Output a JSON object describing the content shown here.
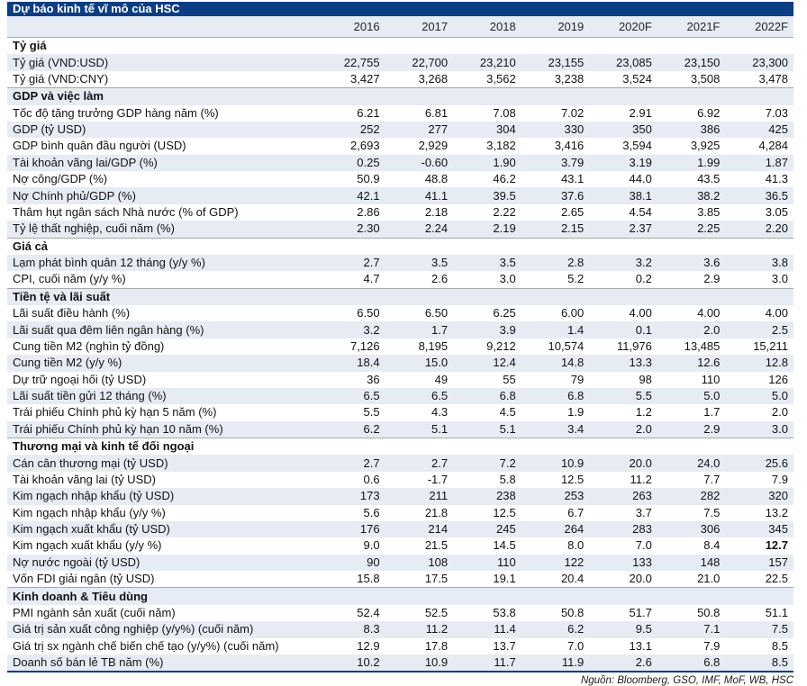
{
  "title": "Dự báo kinh tế vĩ mô của HSC",
  "columns": [
    "2016",
    "2017",
    "2018",
    "2019",
    "2020F",
    "2021F",
    "2022F"
  ],
  "source": "Nguồn: Bloomberg, GSO, IMF, MoF, WB, HSC",
  "colors": {
    "title_bar": "#0b3d84",
    "row_shade": "#e6ebf4"
  },
  "sections": [
    {
      "header": "Tỷ giá",
      "rows": [
        {
          "label": "Tỷ giá (VND:USD)",
          "values": [
            "22,755",
            "22,700",
            "23,210",
            "23,155",
            "23,085",
            "23,150",
            "23,300"
          ]
        },
        {
          "label": "Tỷ giá (VND:CNY)",
          "values": [
            "3,427",
            "3,268",
            "3,562",
            "3,238",
            "3,524",
            "3,508",
            "3,478"
          ]
        }
      ]
    },
    {
      "header": "GDP và việc làm",
      "rows": [
        {
          "label": "Tốc độ tăng trưởng GDP hàng năm (%)",
          "values": [
            "6.21",
            "6.81",
            "7.08",
            "7.02",
            "2.91",
            "6.92",
            "7.03"
          ]
        },
        {
          "label": "GDP (tỷ USD)",
          "values": [
            "252",
            "277",
            "304",
            "330",
            "350",
            "386",
            "425"
          ]
        },
        {
          "label": "GDP bình quân đầu người (USD)",
          "values": [
            "2,693",
            "2,929",
            "3,182",
            "3,416",
            "3,594",
            "3,925",
            "4,284"
          ]
        },
        {
          "label": "Tài khoản vãng lai/GDP (%)",
          "values": [
            "0.25",
            "-0.60",
            "1.90",
            "3.79",
            "3.19",
            "1.99",
            "1.87"
          ]
        },
        {
          "label": "Nợ công/GDP (%)",
          "values": [
            "50.9",
            "48.8",
            "46.2",
            "43.1",
            "44.0",
            "43.5",
            "41.3"
          ]
        },
        {
          "label": "Nợ Chính phủ/GDP (%)",
          "values": [
            "42.1",
            "41.1",
            "39.5",
            "37.6",
            "38.1",
            "38.2",
            "36.5"
          ]
        },
        {
          "label": "Thâm hụt ngân sách Nhà nước (% of GDP)",
          "values": [
            "2.86",
            "2.18",
            "2.22",
            "2.65",
            "4.54",
            "3.85",
            "3.05"
          ]
        },
        {
          "label": "Tỷ lệ thất nghiệp, cuối năm (%)",
          "values": [
            "2.30",
            "2.24",
            "2.19",
            "2.15",
            "2.37",
            "2.25",
            "2.20"
          ]
        }
      ]
    },
    {
      "header": "Giá cả",
      "rows": [
        {
          "label": "Lạm phát bình quân 12 tháng (y/y %)",
          "values": [
            "2.7",
            "3.5",
            "3.5",
            "2.8",
            "3.2",
            "3.6",
            "3.8"
          ]
        },
        {
          "label": "CPI, cuối năm (y/y %)",
          "values": [
            "4.7",
            "2.6",
            "3.0",
            "5.2",
            "0.2",
            "2.9",
            "3.0"
          ]
        }
      ]
    },
    {
      "header": "Tiền tệ và lãi suất",
      "rows": [
        {
          "label": "Lãi suất điều hành (%)",
          "values": [
            "6.50",
            "6.50",
            "6.25",
            "6.00",
            "4.00",
            "4.00",
            "4.00"
          ]
        },
        {
          "label": "Lãi suất qua đêm liên ngân hàng (%)",
          "values": [
            "3.2",
            "1.7",
            "3.9",
            "1.4",
            "0.1",
            "2.0",
            "2.5"
          ]
        },
        {
          "label": "Cung tiền M2 (nghìn tỷ đồng)",
          "values": [
            "7,126",
            "8,195",
            "9,212",
            "10,574",
            "11,976",
            "13,485",
            "15,211"
          ]
        },
        {
          "label": "Cung tiền M2 (y/y %)",
          "values": [
            "18.4",
            "15.0",
            "12.4",
            "14.8",
            "13.3",
            "12.6",
            "12.8"
          ]
        },
        {
          "label": "Dự trữ ngoại hối (tỷ USD)",
          "values": [
            "36",
            "49",
            "55",
            "79",
            "98",
            "110",
            "126"
          ]
        },
        {
          "label": "Lãi suất tiền gửi 12 tháng (%)",
          "values": [
            "6.5",
            "6.5",
            "6.8",
            "6.8",
            "5.5",
            "5.0",
            "5.0"
          ]
        },
        {
          "label": "Trái phiếu Chính phủ kỳ hạn 5 năm (%)",
          "values": [
            "5.5",
            "4.3",
            "4.5",
            "1.9",
            "1.2",
            "1.7",
            "2.0"
          ]
        },
        {
          "label": "Trái phiếu Chính phủ kỳ hạn 10 năm (%)",
          "values": [
            "6.2",
            "5.1",
            "5.1",
            "3.4",
            "2.0",
            "2.9",
            "3.0"
          ]
        }
      ]
    },
    {
      "header": "Thương mại và kinh tế đối ngoại",
      "rows": [
        {
          "label": "Cán cân thương mại (tỷ USD)",
          "values": [
            "2.7",
            "2.7",
            "7.2",
            "10.9",
            "20.0",
            "24.0",
            "25.6"
          ]
        },
        {
          "label": "Tài khoản vãng lai (tỷ USD)",
          "values": [
            "0.6",
            "-1.7",
            "5.8",
            "12.5",
            "11.2",
            "7.7",
            "7.9"
          ]
        },
        {
          "label": "Kim ngạch nhập khẩu (tỷ USD)",
          "values": [
            "173",
            "211",
            "238",
            "253",
            "263",
            "282",
            "320"
          ]
        },
        {
          "label": "Kim ngạch nhập khẩu (y/y %)",
          "values": [
            "5.6",
            "21.8",
            "12.5",
            "6.7",
            "3.7",
            "7.5",
            "13.2"
          ]
        },
        {
          "label": "Kim ngạch xuất khẩu (tỷ USD)",
          "values": [
            "176",
            "214",
            "245",
            "264",
            "283",
            "306",
            "345"
          ]
        },
        {
          "label": "Kim ngạch xuất khẩu (y/y %)",
          "values": [
            "9.0",
            "21.5",
            "14.5",
            "8.0",
            "7.0",
            "8.4",
            "12.7"
          ],
          "bold_indices": [
            6
          ]
        },
        {
          "label": "Nợ nước ngoài (tỷ USD)",
          "values": [
            "90",
            "108",
            "110",
            "122",
            "133",
            "148",
            "157"
          ]
        },
        {
          "label": "Vốn FDI giải ngân (tỷ USD)",
          "values": [
            "15.8",
            "17.5",
            "19.1",
            "20.4",
            "20.0",
            "21.0",
            "22.5"
          ]
        }
      ]
    },
    {
      "header": "Kinh doanh & Tiêu dùng",
      "rows": [
        {
          "label": "PMI ngành sản xuất (cuối năm)",
          "values": [
            "52.4",
            "52.5",
            "53.8",
            "50.8",
            "51.7",
            "50.8",
            "51.1"
          ]
        },
        {
          "label": "Giá trị sản xuất công nghiệp (y/y%) (cuối năm)",
          "values": [
            "8.3",
            "11.2",
            "11.4",
            "6.2",
            "9.5",
            "7.1",
            "7.5"
          ]
        },
        {
          "label": "Giá trị sx ngành chế biến chế tạo (y/y%) (cuối năm)",
          "values": [
            "12.9",
            "17.8",
            "13.7",
            "7.0",
            "13.1",
            "7.9",
            "8.5"
          ]
        },
        {
          "label": "Doanh số bán lẻ TB năm (%)",
          "values": [
            "10.2",
            "10.9",
            "11.7",
            "11.9",
            "2.6",
            "6.8",
            "8.5"
          ]
        }
      ]
    }
  ]
}
